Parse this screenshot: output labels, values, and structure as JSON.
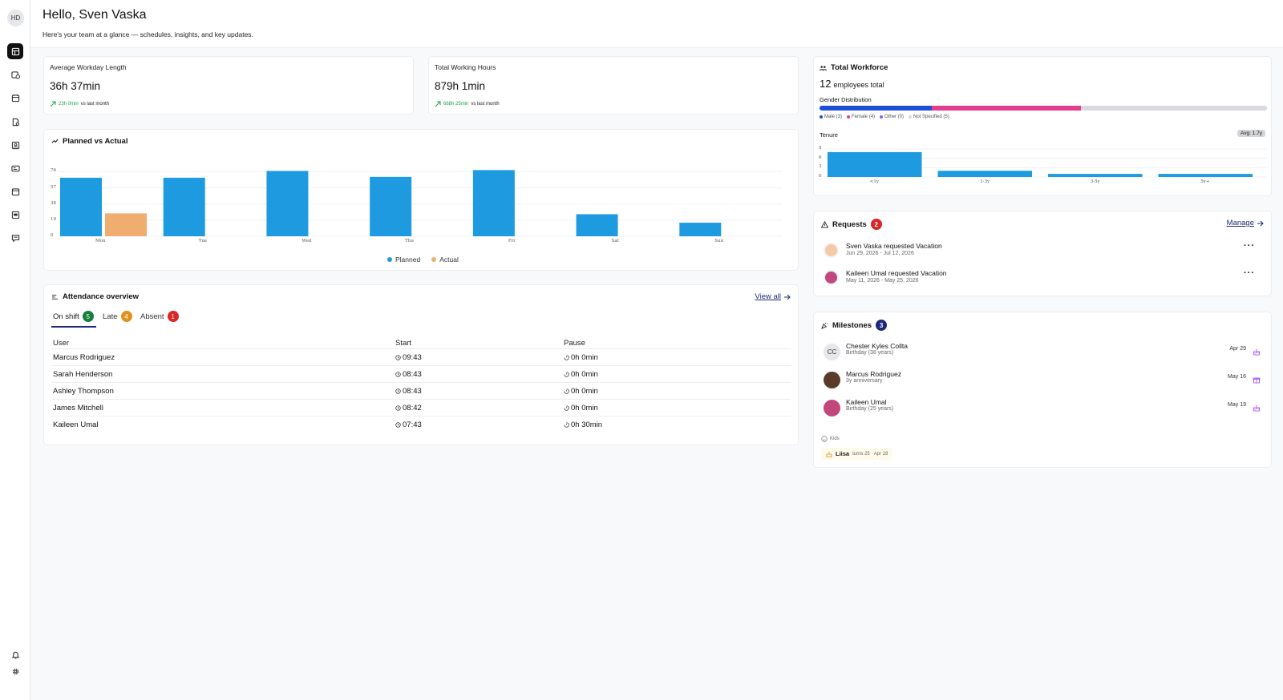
{
  "sidebar": {
    "user_initials": "HD",
    "items": [
      "dashboard-icon",
      "clock-icon",
      "calendar-icon",
      "document-icon",
      "people-icon",
      "id-card-icon",
      "calendar-check-icon",
      "inbox-icon",
      "chat-icon"
    ],
    "bottom": [
      "bell-icon",
      "gear-icon"
    ]
  },
  "header": {
    "greeting": "Hello, Sven Vaska",
    "subtitle": "Here's your team at a glance — schedules, insights, and key updates."
  },
  "stats": [
    {
      "label": "Average Workday Length",
      "value": "36h 37min",
      "trend_value": "23h 0min",
      "trend_suffix": "vs last month"
    },
    {
      "label": "Total Working Hours",
      "value": "879h 1min",
      "trend_value": "688h 25min",
      "trend_suffix": "vs last month"
    }
  ],
  "planned_vs_actual": {
    "title": "Planned vs Actual",
    "chart_data": {
      "type": "bar",
      "categories": [
        "Mon",
        "Tue",
        "Wed",
        "Thu",
        "Fri",
        "Sat",
        "Sun"
      ],
      "series": [
        {
          "name": "Planned",
          "values": [
            69,
            69,
            77,
            70,
            78,
            26,
            16
          ],
          "color": "#1e9be0"
        },
        {
          "name": "Actual",
          "values": [
            27,
            0,
            0,
            0,
            0,
            0,
            0
          ],
          "color": "#efad6f"
        }
      ],
      "yticks": [
        "76",
        "57",
        "38",
        "19",
        "0"
      ],
      "ylim": [
        0,
        84
      ]
    }
  },
  "attendance": {
    "title": "Attendance overview",
    "view_all": "View all",
    "tabs": [
      {
        "label": "On shift",
        "count": "5",
        "color": "#15803d"
      },
      {
        "label": "Late",
        "count": "4",
        "color": "#e0921f"
      },
      {
        "label": "Absent",
        "count": "1",
        "color": "#dc2626"
      }
    ],
    "columns": [
      "User",
      "Start",
      "Pause"
    ],
    "rows": [
      {
        "user": "Marcus Rodriguez",
        "start": "09:43",
        "pause": "0h 0min"
      },
      {
        "user": "Sarah Henderson",
        "start": "08:43",
        "pause": "0h 0min"
      },
      {
        "user": "Ashley Thompson",
        "start": "08:43",
        "pause": "0h 0min"
      },
      {
        "user": "James Mitchell",
        "start": "08:42",
        "pause": "0h 0min"
      },
      {
        "user": "Kaileen Umal",
        "start": "07:43",
        "pause": "0h 30min"
      }
    ]
  },
  "workforce": {
    "title": "Total Workforce",
    "count": "12",
    "count_label": "employees total",
    "gender_title": "Gender Distribution",
    "gender": [
      {
        "label": "Male (3)",
        "value": 3,
        "color": "#1d4ed8"
      },
      {
        "label": "Female (4)",
        "value": 4,
        "color": "#e43c8e"
      },
      {
        "label": "Other (0)",
        "value": 0,
        "color": "#8b5cf6"
      },
      {
        "label": "Not Specified (5)",
        "value": 5,
        "color": "#d9dadd"
      }
    ],
    "tenure_title": "Tenure",
    "tenure_avg": "Avg: 1.7y",
    "chart_data": {
      "type": "bar",
      "categories": [
        "<1y",
        "1-3y",
        "3-5y",
        "5y+"
      ],
      "values": [
        8,
        2,
        1,
        1
      ],
      "yticks": [
        "9",
        "6",
        "3",
        "0"
      ],
      "ylim": [
        0,
        9
      ]
    }
  },
  "requests": {
    "title": "Requests",
    "count": "2",
    "manage": "Manage",
    "items": [
      {
        "name": "Sven Vaska requested Vacation",
        "dates": "Jun 29, 2026 - Jul 12, 2026"
      },
      {
        "name": "Kaileen Umal requested Vacation",
        "dates": "May 11, 2026 - May 25, 2026"
      }
    ]
  },
  "milestones": {
    "title": "Milestones",
    "count": "3",
    "items": [
      {
        "initials": "CC",
        "name": "Chester Kyles Collta",
        "detail": "Birthday (38 years)",
        "date": "Apr 29"
      },
      {
        "initials": "",
        "name": "Marcus Rodriguez",
        "detail": "3y anniversary",
        "date": "May 16"
      },
      {
        "initials": "",
        "name": "Kaileen Umal",
        "detail": "Birthday (25 years)",
        "date": "May 19"
      }
    ],
    "kids_label": "Kids",
    "kid": {
      "name": "Liisa",
      "detail": "turns 25 · Apr 28"
    }
  }
}
